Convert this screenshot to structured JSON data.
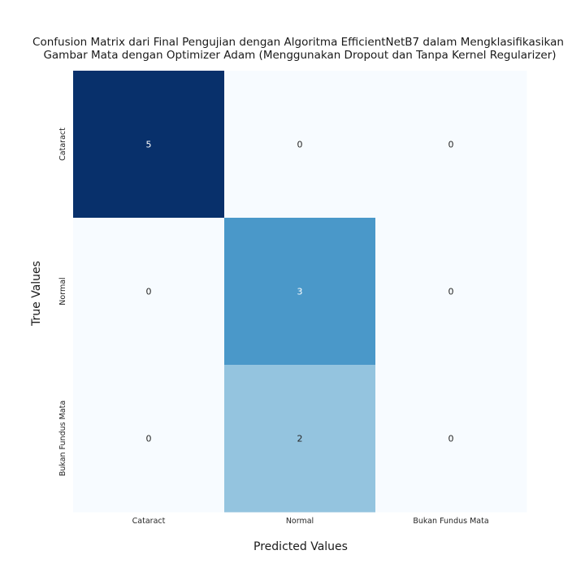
{
  "chart_data": {
    "type": "heatmap",
    "title": [
      "Confusion Matrix dari Final Pengujian dengan Algoritma EfficientNetB7 dalam Mengklasifikasikan",
      "Gambar Mata dengan Optimizer Adam (Menggunakan Dropout dan Tanpa Kernel Regularizer)"
    ],
    "xlabel": "Predicted Values",
    "ylabel": "True Values",
    "x_categories": [
      "Cataract",
      "Normal",
      "Bukan Fundus Mata"
    ],
    "y_categories": [
      "Cataract",
      "Normal",
      "Bukan Fundus Mata"
    ],
    "values": [
      [
        5,
        0,
        0
      ],
      [
        0,
        3,
        0
      ],
      [
        0,
        2,
        0
      ]
    ],
    "colormap": "Blues",
    "vmin": 0,
    "vmax": 5,
    "colorbar": false,
    "grid": false,
    "colors": {
      "low": "#f7fbff",
      "high": "#08306b",
      "text_dark": "#262626",
      "text_light": "#ffffff"
    }
  }
}
